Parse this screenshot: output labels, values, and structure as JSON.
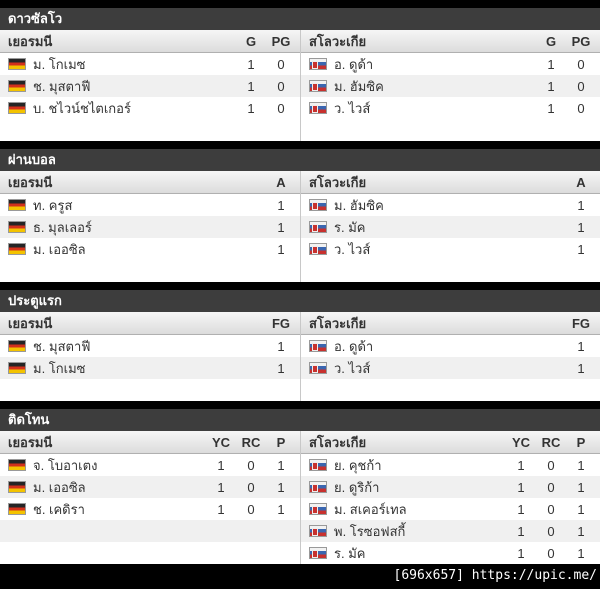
{
  "watermark": "[696x657] https://upic.me/",
  "colors": {
    "page_bg": "#000000",
    "section_header_bg": "#3d3d3d",
    "section_header_text": "#ffffff",
    "row_alt_bg": "#f0f0f0",
    "divider": "#c8c8c8",
    "flag_germany": [
      "#252525",
      "#d2301c",
      "#f3c300"
    ],
    "flag_slovakia": [
      "#f2f2f2",
      "#3a66b0",
      "#c8312e"
    ]
  },
  "sections": [
    {
      "title": "ดาวซัลโว",
      "columns": [
        "G",
        "PG"
      ],
      "home": {
        "team": "เยอรมนี",
        "players": [
          {
            "name": "ม. โกเมซ",
            "values": [
              "1",
              "0"
            ]
          },
          {
            "name": "ช. มุสตาฟี",
            "values": [
              "1",
              "0"
            ]
          },
          {
            "name": "บ. ชไวน์ชไตเกอร์",
            "values": [
              "1",
              "0"
            ]
          }
        ]
      },
      "away": {
        "team": "สโลวะเกีย",
        "players": [
          {
            "name": "อ. ดูด้า",
            "values": [
              "1",
              "0"
            ]
          },
          {
            "name": "ม. ฮัมซิค",
            "values": [
              "1",
              "0"
            ]
          },
          {
            "name": "ว. ไวส์",
            "values": [
              "1",
              "0"
            ]
          }
        ]
      }
    },
    {
      "title": "ผ่านบอล",
      "columns": [
        "A"
      ],
      "home": {
        "team": "เยอรมนี",
        "players": [
          {
            "name": "ท. ครูส",
            "values": [
              "1"
            ]
          },
          {
            "name": "ธ. มุลเลอร์",
            "values": [
              "1"
            ]
          },
          {
            "name": "ม. เออซิล",
            "values": [
              "1"
            ]
          }
        ]
      },
      "away": {
        "team": "สโลวะเกีย",
        "players": [
          {
            "name": "ม. ฮัมซิค",
            "values": [
              "1"
            ]
          },
          {
            "name": "ร. มัค",
            "values": [
              "1"
            ]
          },
          {
            "name": "ว. ไวส์",
            "values": [
              "1"
            ]
          }
        ]
      }
    },
    {
      "title": "ประตูแรก",
      "columns": [
        "FG"
      ],
      "home": {
        "team": "เยอรมนี",
        "players": [
          {
            "name": "ช. มุสตาฟี",
            "values": [
              "1"
            ]
          },
          {
            "name": "ม. โกเมซ",
            "values": [
              "1"
            ]
          }
        ]
      },
      "away": {
        "team": "สโลวะเกีย",
        "players": [
          {
            "name": "อ. ดูด้า",
            "values": [
              "1"
            ]
          },
          {
            "name": "ว. ไวส์",
            "values": [
              "1"
            ]
          }
        ]
      }
    },
    {
      "title": "ติดโทน",
      "columns": [
        "YC",
        "RC",
        "P"
      ],
      "home": {
        "team": "เยอรมนี",
        "players": [
          {
            "name": "จ. โบอาเตง",
            "values": [
              "1",
              "0",
              "1"
            ]
          },
          {
            "name": "ม. เออซิล",
            "values": [
              "1",
              "0",
              "1"
            ]
          },
          {
            "name": "ช. เคดิรา",
            "values": [
              "1",
              "0",
              "1"
            ]
          }
        ]
      },
      "away": {
        "team": "สโลวะเกีย",
        "players": [
          {
            "name": "ย. คุชก้า",
            "values": [
              "1",
              "0",
              "1"
            ]
          },
          {
            "name": "ย. ดูริก้า",
            "values": [
              "1",
              "0",
              "1"
            ]
          },
          {
            "name": "ม. สเคอร์เทล",
            "values": [
              "1",
              "0",
              "1"
            ]
          },
          {
            "name": "พ. โรซอฟสกี้",
            "values": [
              "1",
              "0",
              "1"
            ]
          },
          {
            "name": "ร. มัค",
            "values": [
              "1",
              "0",
              "1"
            ]
          }
        ]
      }
    }
  ]
}
